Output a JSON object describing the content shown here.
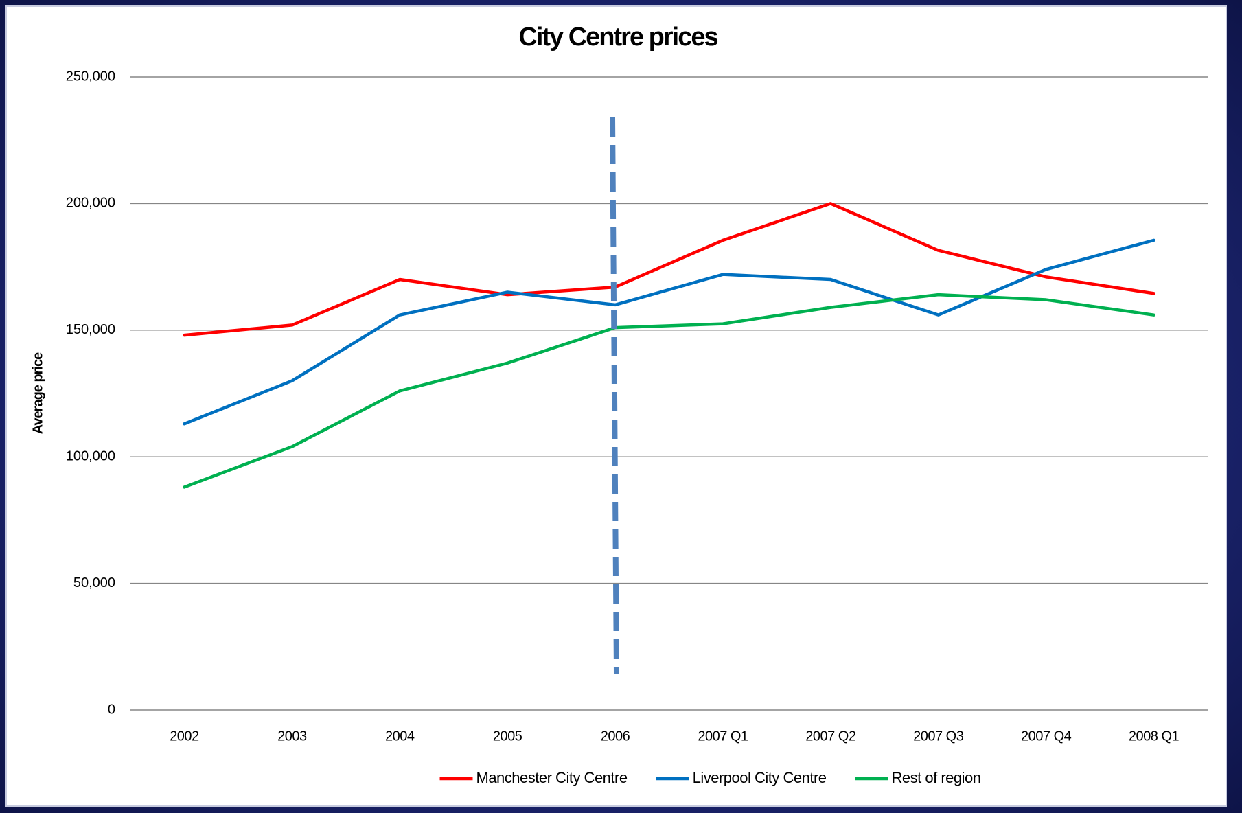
{
  "chart_data": {
    "type": "line",
    "title": "City Centre prices",
    "y_label": "Average price",
    "categories": [
      "2002",
      "2003",
      "2004",
      "2005",
      "2006",
      "2007 Q1",
      "2007 Q2",
      "2007 Q3",
      "2007 Q4",
      "2008 Q1"
    ],
    "series": [
      {
        "name": "Manchester City Centre",
        "color": "#ff0000",
        "values": [
          148000,
          152000,
          170000,
          164000,
          167000,
          185500,
          200000,
          181500,
          171000,
          164500
        ]
      },
      {
        "name": "Liverpool City Centre",
        "color": "#0070c0",
        "values": [
          113000,
          130000,
          156000,
          165000,
          160000,
          172000,
          170000,
          156000,
          174000,
          185500
        ]
      },
      {
        "name": "Rest of region",
        "color": "#00b050",
        "values": [
          88000,
          104000,
          126000,
          137000,
          151000,
          152500,
          159000,
          164000,
          162000,
          156000
        ]
      }
    ],
    "ylim": [
      0,
      250000
    ],
    "yticks": [
      0,
      {
        "value": 50000,
        "label": "50,000"
      },
      {
        "value": 100000,
        "label": "100,000"
      },
      {
        "value": 150000,
        "label": "150,000"
      },
      {
        "value": 200000,
        "label": "200,000"
      },
      {
        "value": 250000,
        "label": "250,000"
      }
    ],
    "grid": true,
    "legend": "bottom"
  }
}
